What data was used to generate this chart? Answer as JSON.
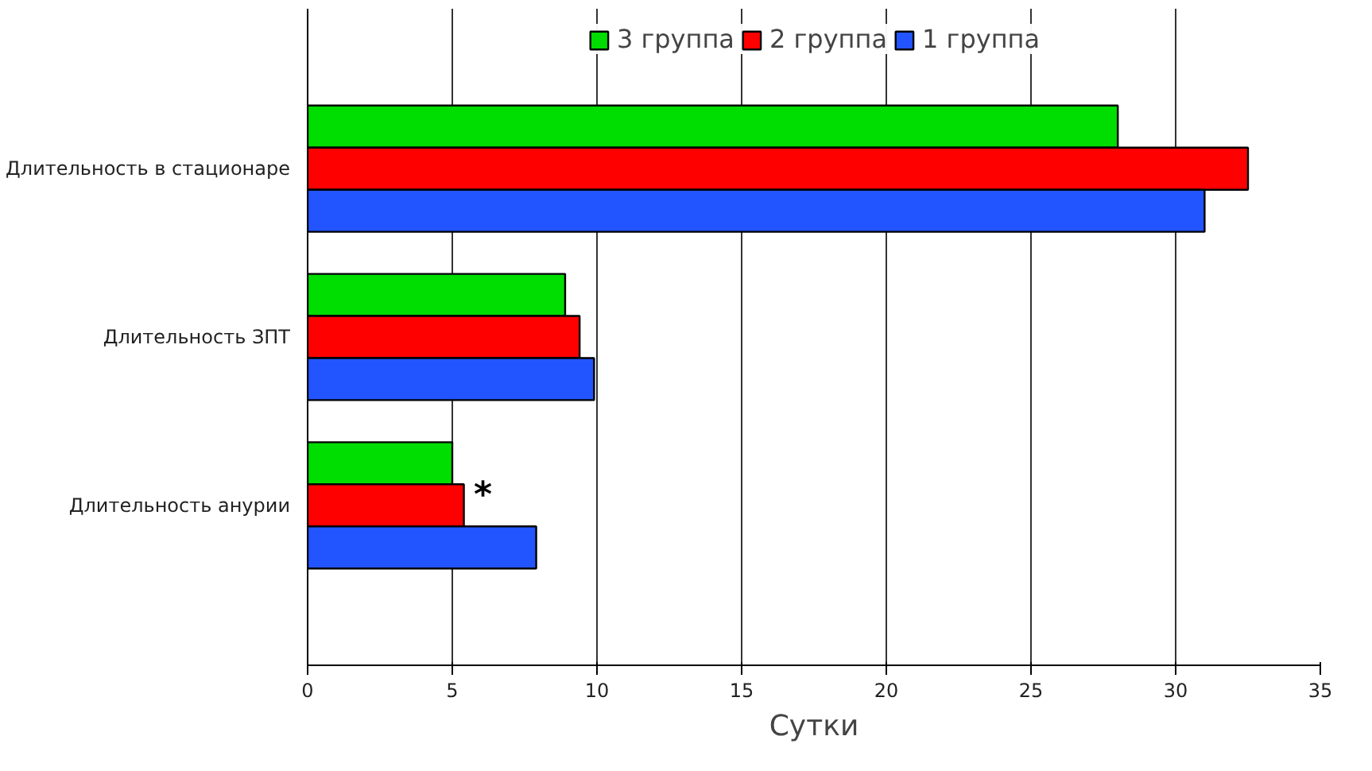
{
  "chart_data": {
    "type": "bar",
    "orientation": "horizontal",
    "xlabel": "Сутки",
    "categories": [
      "Длительность в стационаре",
      "Длительность ЗПТ",
      "Длительность анурии"
    ],
    "series": [
      {
        "name": "3 группа",
        "color": "#00dd00",
        "values": [
          28.0,
          8.9,
          5.0
        ]
      },
      {
        "name": "2 группа",
        "color": "#ff0000",
        "values": [
          32.5,
          9.4,
          5.4
        ]
      },
      {
        "name": "1 группа",
        "color": "#2255ff",
        "values": [
          31.0,
          9.9,
          7.9
        ]
      }
    ],
    "xlim": [
      0,
      35
    ],
    "xticks": [
      0,
      5,
      10,
      15,
      20,
      25,
      30,
      35
    ],
    "grid": "x",
    "legend": "top",
    "annotations": [
      {
        "text": "*",
        "x": 5.4,
        "y": "Длительность анурии"
      }
    ]
  }
}
